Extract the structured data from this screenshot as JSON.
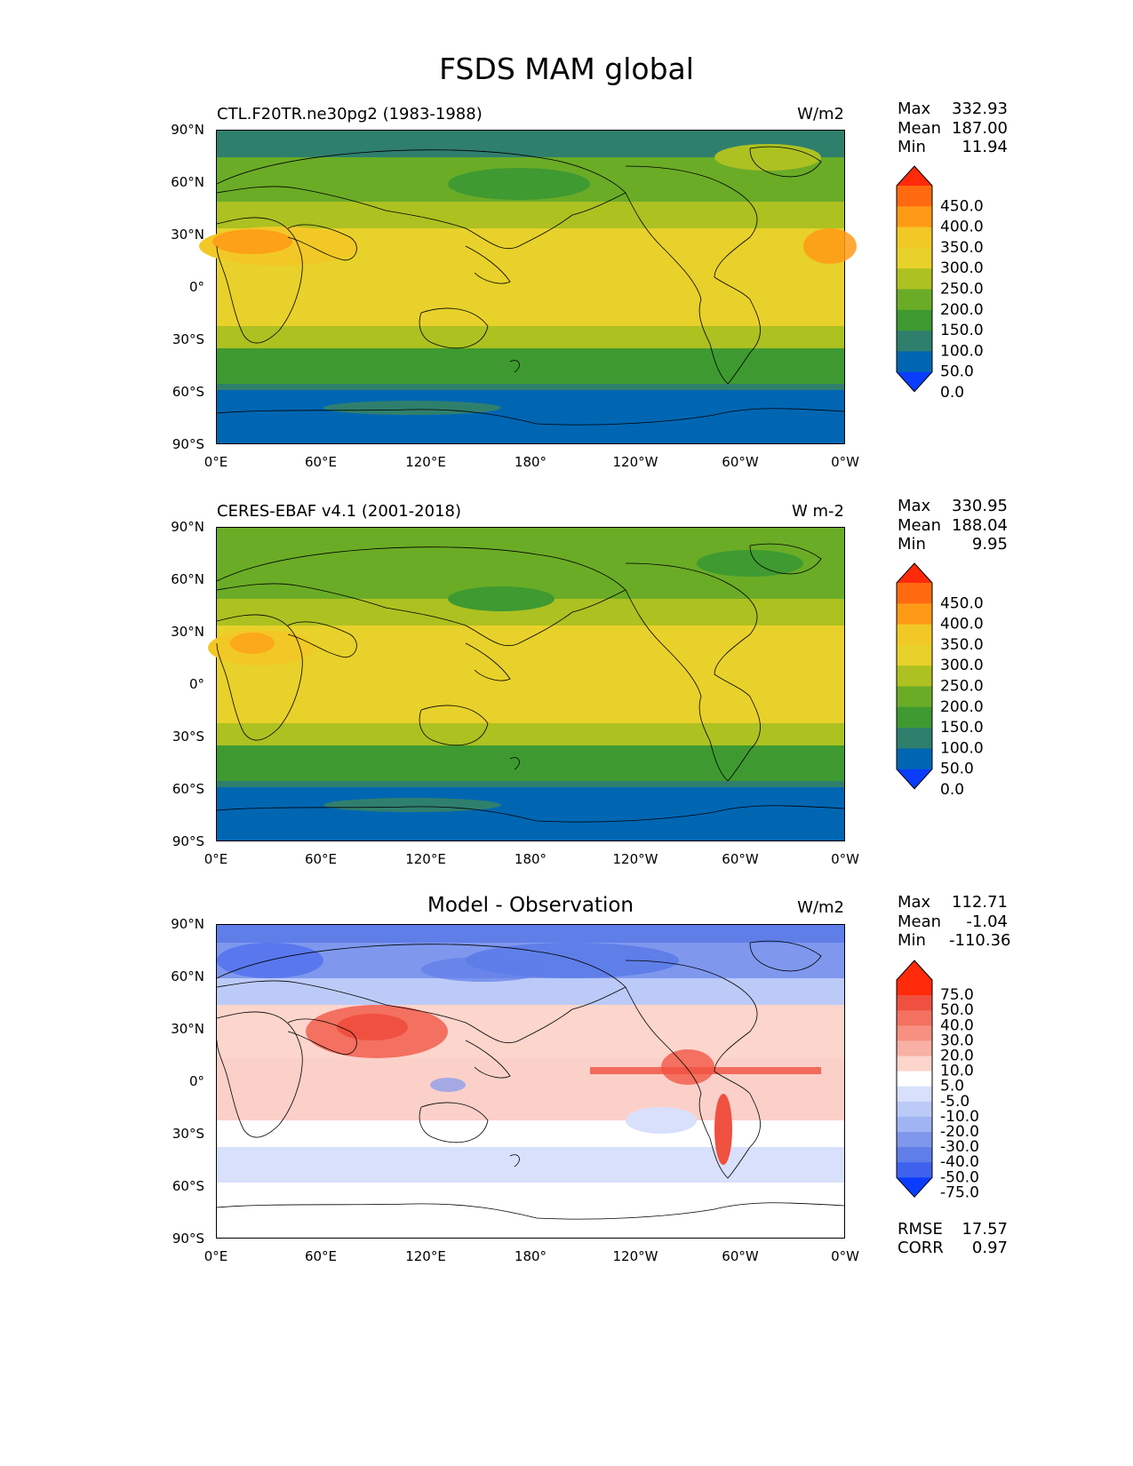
{
  "figure": {
    "title": "FSDS MAM global"
  },
  "axes": {
    "y_ticks": [
      "90°N",
      "60°N",
      "30°N",
      "0°",
      "30°S",
      "60°S",
      "90°S"
    ],
    "x_ticks": [
      "0°E",
      "60°E",
      "120°E",
      "180°",
      "120°W",
      "60°W",
      "0°W"
    ]
  },
  "panels": [
    {
      "title_left": "CTL.F20TR.ne30pg2 (1983-1988)",
      "title_center": "",
      "units": "W/m2",
      "stats": {
        "max_label": "Max",
        "max": "332.93",
        "mean_label": "Mean",
        "mean": "187.00",
        "min_label": "Min",
        "min": "11.94"
      },
      "colorbar": {
        "labels": [
          "450.0",
          "400.0",
          "350.0",
          "300.0",
          "250.0",
          "200.0",
          "150.0",
          "100.0",
          "50.0",
          "0.0"
        ],
        "colors": [
          "#ff2a0a",
          "#ff6a10",
          "#ff9a16",
          "#f2c826",
          "#e8d12a",
          "#adc121",
          "#6aac26",
          "#3e9a31",
          "#2f7f6d",
          "#0066b2",
          "#0a3dff"
        ]
      }
    },
    {
      "title_left": "CERES-EBAF v4.1 (2001-2018)",
      "title_center": "",
      "units": "W m-2",
      "stats": {
        "max_label": "Max",
        "max": "330.95",
        "mean_label": "Mean",
        "mean": "188.04",
        "min_label": "Min",
        "min": "9.95"
      },
      "colorbar": {
        "labels": [
          "450.0",
          "400.0",
          "350.0",
          "300.0",
          "250.0",
          "200.0",
          "150.0",
          "100.0",
          "50.0",
          "0.0"
        ],
        "colors": [
          "#ff2a0a",
          "#ff6a10",
          "#ff9a16",
          "#f2c826",
          "#e8d12a",
          "#adc121",
          "#6aac26",
          "#3e9a31",
          "#2f7f6d",
          "#0066b2",
          "#0a3dff"
        ]
      }
    },
    {
      "title_left": "",
      "title_center": "Model - Observation",
      "units": "W/m2",
      "stats": {
        "max_label": "Max",
        "max": "112.71",
        "mean_label": "Mean",
        "mean": "-1.04",
        "min_label": "Min",
        "min": "-110.36"
      },
      "colorbar": {
        "labels": [
          "75.0",
          "50.0",
          "40.0",
          "30.0",
          "20.0",
          "10.0",
          "5.0",
          "-5.0",
          "-10.0",
          "-20.0",
          "-30.0",
          "-40.0",
          "-50.0",
          "-75.0"
        ],
        "colors": [
          "#ff2a0a",
          "#ff2a0a",
          "#f05040",
          "#f47060",
          "#f79080",
          "#f9b0a5",
          "#fcd5cc",
          "#ffffff",
          "#d8e0fc",
          "#bccaf8",
          "#a0b4f4",
          "#7f98ee",
          "#5f7ee8",
          "#3f62ee",
          "#0a3dff"
        ]
      },
      "metrics": {
        "rmse_label": "RMSE",
        "rmse": "17.57",
        "corr_label": "CORR",
        "corr": "0.97"
      }
    }
  ]
}
